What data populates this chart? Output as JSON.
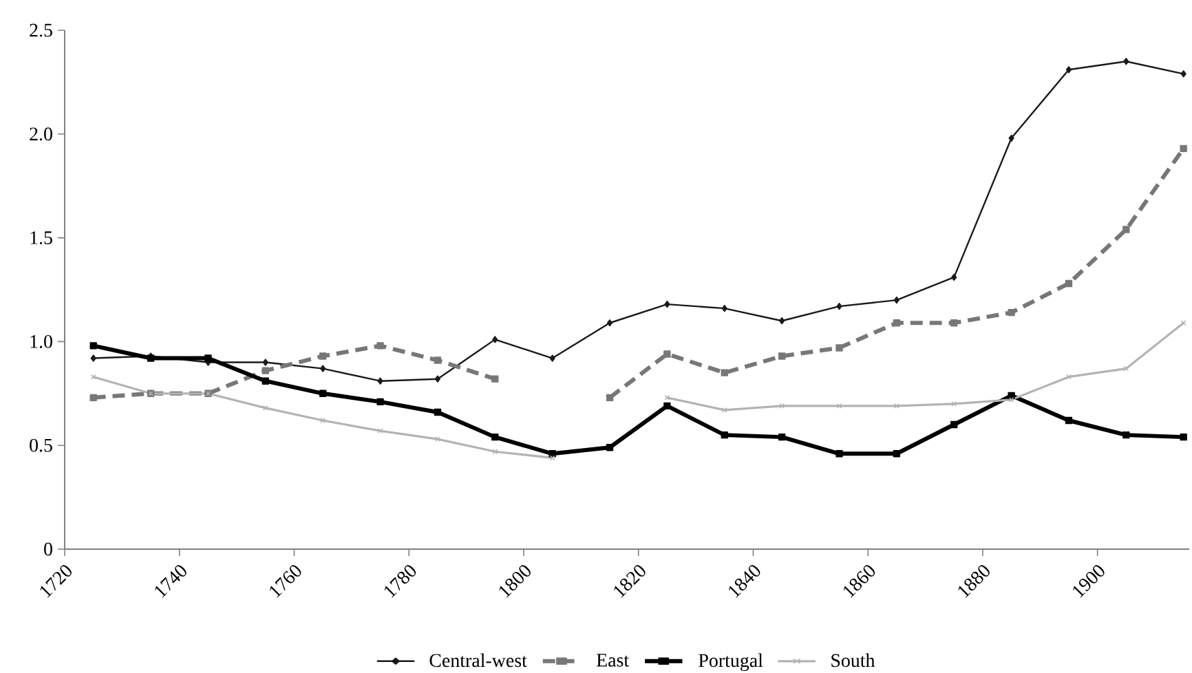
{
  "chart_data": {
    "type": "line",
    "x": [
      1725,
      1735,
      1745,
      1755,
      1765,
      1775,
      1785,
      1795,
      1805,
      1815,
      1825,
      1835,
      1845,
      1855,
      1865,
      1875,
      1885,
      1895,
      1905,
      1915
    ],
    "series": [
      {
        "name": "Central-west",
        "color": "#1a1a1a",
        "marker": "diamond",
        "line_style": "solid",
        "values": [
          0.92,
          0.93,
          0.9,
          0.9,
          0.87,
          0.81,
          0.82,
          1.01,
          0.92,
          1.09,
          1.18,
          1.16,
          1.1,
          1.17,
          1.2,
          1.31,
          1.98,
          2.31,
          2.35,
          2.29
        ]
      },
      {
        "name": "East",
        "color": "#777777",
        "marker": "square",
        "line_style": "dashed",
        "values": [
          0.73,
          0.75,
          0.75,
          0.86,
          0.93,
          0.98,
          0.91,
          0.82,
          null,
          0.73,
          0.94,
          0.85,
          0.93,
          0.97,
          1.09,
          1.09,
          1.14,
          1.28,
          1.54,
          1.93
        ]
      },
      {
        "name": "Portugal",
        "color": "#000000",
        "marker": "square",
        "line_style": "solid",
        "values": [
          0.98,
          0.92,
          0.92,
          0.81,
          0.75,
          0.71,
          0.66,
          0.54,
          0.46,
          0.49,
          0.69,
          0.55,
          0.54,
          0.46,
          0.46,
          0.6,
          0.74,
          0.62,
          0.55,
          0.54
        ]
      },
      {
        "name": "South",
        "color": "#b3b3b3",
        "marker": "cross",
        "line_style": "solid",
        "values": [
          0.83,
          0.75,
          0.75,
          0.68,
          0.62,
          0.57,
          0.53,
          0.47,
          0.44,
          null,
          0.73,
          0.67,
          0.69,
          0.69,
          0.69,
          0.7,
          0.72,
          0.83,
          0.87,
          1.09
        ]
      }
    ],
    "xlim": [
      1720,
      1916
    ],
    "xticks": [
      1720,
      1740,
      1760,
      1780,
      1800,
      1820,
      1840,
      1860,
      1880,
      1900
    ],
    "ylim": [
      0,
      2.5
    ],
    "yticks": [
      0,
      {
        "value": 0.5,
        "label": "0.5"
      },
      {
        "value": 1.0,
        "label": "1.0"
      },
      {
        "value": 1.5,
        "label": "1.5"
      },
      {
        "value": 2.0,
        "label": "2.0"
      },
      {
        "value": 2.5,
        "label": "2.5"
      }
    ],
    "legend": "bottom"
  }
}
